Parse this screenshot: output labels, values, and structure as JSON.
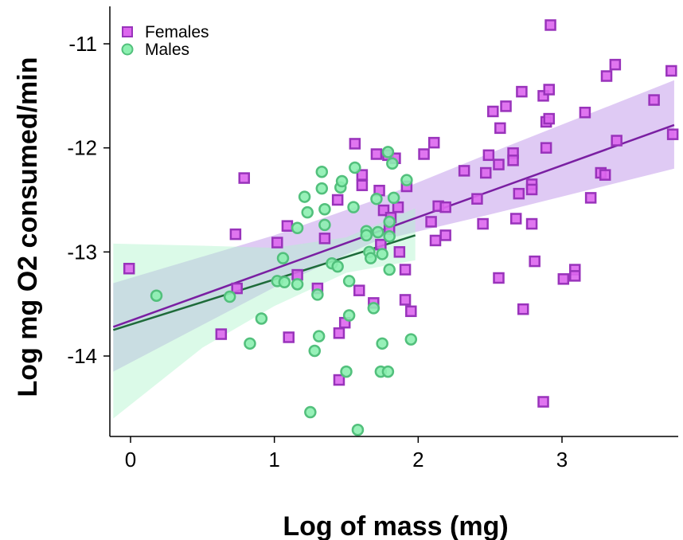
{
  "chart_data": {
    "type": "scatter",
    "title": "",
    "xlabel": "Log of mass (mg)",
    "ylabel": "Log mg O2 consumed/min",
    "xlim": [
      -0.15,
      3.8
    ],
    "ylim": [
      -14.75,
      -10.7
    ],
    "xticks": [
      0,
      1,
      2,
      3
    ],
    "yticks": [
      -14,
      -13,
      -12,
      -11
    ],
    "grid": false,
    "legend": "top-left",
    "series": [
      {
        "name": "Females",
        "marker": "square",
        "color": "#dd66ee",
        "edge_color": "#9933bb",
        "fit": {
          "x0": -0.12,
          "y0": -13.72,
          "x1": 3.78,
          "y1": -11.78,
          "color": "#7a1fa2",
          "band": [
            [
              -0.12,
              -14.15,
              -13.3
            ],
            [
              1.0,
              -13.34,
              -12.84
            ],
            [
              1.7,
              -12.9,
              -12.5
            ],
            [
              2.5,
              -12.64,
              -12.05
            ],
            [
              3.78,
              -12.2,
              -11.35
            ]
          ],
          "band_color": "#c9a6ec"
        },
        "points": [
          [
            -0.01,
            -13.16
          ],
          [
            0.63,
            -13.79
          ],
          [
            0.73,
            -12.83
          ],
          [
            0.74,
            -13.35
          ],
          [
            0.79,
            -12.29
          ],
          [
            1.02,
            -12.91
          ],
          [
            1.09,
            -12.75
          ],
          [
            1.1,
            -13.82
          ],
          [
            1.16,
            -13.22
          ],
          [
            1.3,
            -13.35
          ],
          [
            1.35,
            -12.87
          ],
          [
            1.44,
            -12.5
          ],
          [
            1.45,
            -14.23
          ],
          [
            1.45,
            -13.78
          ],
          [
            1.49,
            -13.68
          ],
          [
            1.56,
            -11.96
          ],
          [
            1.59,
            -13.37
          ],
          [
            1.61,
            -12.26
          ],
          [
            1.61,
            -12.36
          ],
          [
            1.69,
            -13.49
          ],
          [
            1.71,
            -12.06
          ],
          [
            1.73,
            -12.41
          ],
          [
            1.74,
            -12.93
          ],
          [
            1.76,
            -12.6
          ],
          [
            1.79,
            -12.07
          ],
          [
            1.8,
            -12.78
          ],
          [
            1.81,
            -12.67
          ],
          [
            1.84,
            -12.1
          ],
          [
            1.86,
            -12.57
          ],
          [
            1.87,
            -13.0
          ],
          [
            1.91,
            -13.46
          ],
          [
            1.91,
            -13.17
          ],
          [
            1.92,
            -12.37
          ],
          [
            1.95,
            -13.57
          ],
          [
            2.04,
            -12.06
          ],
          [
            2.09,
            -12.71
          ],
          [
            2.11,
            -11.95
          ],
          [
            2.12,
            -12.89
          ],
          [
            2.14,
            -12.56
          ],
          [
            2.19,
            -12.84
          ],
          [
            2.19,
            -12.57
          ],
          [
            2.32,
            -12.22
          ],
          [
            2.41,
            -12.49
          ],
          [
            2.45,
            -12.73
          ],
          [
            2.47,
            -12.24
          ],
          [
            2.49,
            -12.07
          ],
          [
            2.52,
            -11.65
          ],
          [
            2.56,
            -12.16
          ],
          [
            2.56,
            -13.25
          ],
          [
            2.57,
            -11.81
          ],
          [
            2.61,
            -11.6
          ],
          [
            2.66,
            -12.05
          ],
          [
            2.66,
            -12.12
          ],
          [
            2.68,
            -12.68
          ],
          [
            2.7,
            -12.44
          ],
          [
            2.72,
            -11.46
          ],
          [
            2.73,
            -13.55
          ],
          [
            2.79,
            -12.35
          ],
          [
            2.79,
            -12.4
          ],
          [
            2.79,
            -12.73
          ],
          [
            2.81,
            -13.09
          ],
          [
            2.87,
            -11.5
          ],
          [
            2.87,
            -14.44
          ],
          [
            2.89,
            -11.75
          ],
          [
            2.89,
            -12.0
          ],
          [
            2.91,
            -11.72
          ],
          [
            2.91,
            -11.44
          ],
          [
            2.92,
            -10.82
          ],
          [
            3.01,
            -13.26
          ],
          [
            3.09,
            -13.17
          ],
          [
            3.09,
            -13.23
          ],
          [
            3.16,
            -11.66
          ],
          [
            3.2,
            -12.48
          ],
          [
            3.27,
            -12.24
          ],
          [
            3.3,
            -12.26
          ],
          [
            3.31,
            -11.31
          ],
          [
            3.37,
            -11.2
          ],
          [
            3.38,
            -11.93
          ],
          [
            3.64,
            -11.54
          ],
          [
            3.76,
            -11.26
          ],
          [
            3.77,
            -11.87
          ]
        ]
      },
      {
        "name": "Males",
        "marker": "circle",
        "color": "#8cf0b0",
        "edge_color": "#52c07c",
        "fit": {
          "x0": -0.12,
          "y0": -13.75,
          "x1": 1.98,
          "y1": -12.84,
          "color": "#1e6b3a",
          "band": [
            [
              -0.12,
              -14.6,
              -12.92
            ],
            [
              0.5,
              -13.92,
              -12.94
            ],
            [
              1.0,
              -13.52,
              -12.96
            ],
            [
              1.5,
              -13.2,
              -12.86
            ],
            [
              1.98,
              -13.08,
              -12.58
            ]
          ],
          "band_color": "#b0f3cc"
        },
        "points": [
          [
            0.18,
            -13.42
          ],
          [
            0.69,
            -13.43
          ],
          [
            0.83,
            -13.88
          ],
          [
            0.91,
            -13.64
          ],
          [
            1.02,
            -13.28
          ],
          [
            1.06,
            -13.06
          ],
          [
            1.07,
            -13.29
          ],
          [
            1.16,
            -13.31
          ],
          [
            1.16,
            -12.77
          ],
          [
            1.21,
            -12.47
          ],
          [
            1.23,
            -12.62
          ],
          [
            1.25,
            -14.54
          ],
          [
            1.28,
            -13.95
          ],
          [
            1.3,
            -13.41
          ],
          [
            1.31,
            -13.81
          ],
          [
            1.33,
            -12.23
          ],
          [
            1.33,
            -12.39
          ],
          [
            1.35,
            -12.59
          ],
          [
            1.35,
            -12.74
          ],
          [
            1.4,
            -13.11
          ],
          [
            1.44,
            -13.14
          ],
          [
            1.46,
            -12.38
          ],
          [
            1.47,
            -12.32
          ],
          [
            1.5,
            -14.15
          ],
          [
            1.52,
            -13.61
          ],
          [
            1.52,
            -13.28
          ],
          [
            1.55,
            -12.57
          ],
          [
            1.56,
            -12.19
          ],
          [
            1.58,
            -14.71
          ],
          [
            1.64,
            -12.8
          ],
          [
            1.64,
            -12.84
          ],
          [
            1.66,
            -13.0
          ],
          [
            1.67,
            -13.06
          ],
          [
            1.69,
            -13.54
          ],
          [
            1.71,
            -12.49
          ],
          [
            1.72,
            -12.81
          ],
          [
            1.74,
            -14.15
          ],
          [
            1.75,
            -13.88
          ],
          [
            1.75,
            -13.02
          ],
          [
            1.79,
            -14.15
          ],
          [
            1.79,
            -12.04
          ],
          [
            1.8,
            -12.71
          ],
          [
            1.8,
            -13.17
          ],
          [
            1.8,
            -12.85
          ],
          [
            1.82,
            -12.15
          ],
          [
            1.83,
            -12.48
          ],
          [
            1.92,
            -12.31
          ],
          [
            1.95,
            -13.84
          ]
        ]
      }
    ]
  }
}
